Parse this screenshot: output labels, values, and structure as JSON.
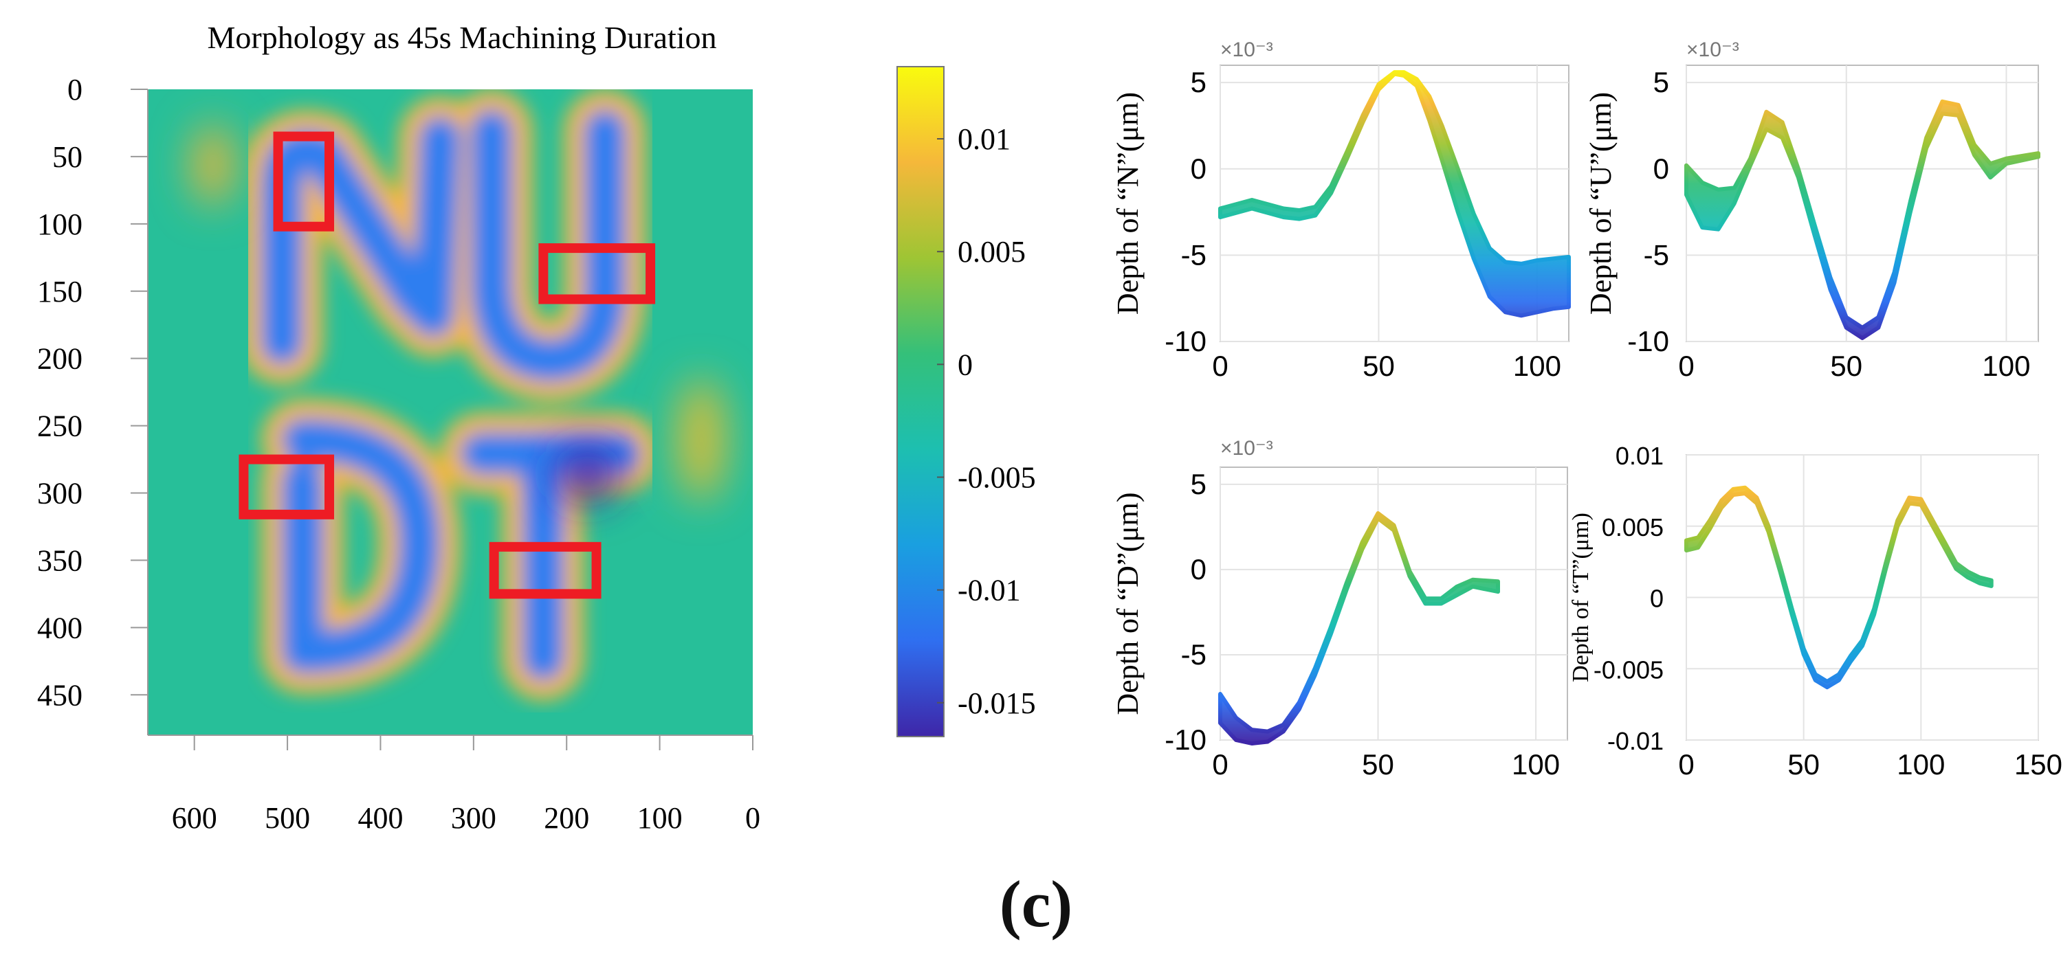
{
  "panel_label": "(c)",
  "chart_data": [
    {
      "type": "heatmap",
      "title": "Morphology as 45s Machining Duration",
      "x_ticks": [
        "600",
        "500",
        "400",
        "300",
        "200",
        "100",
        "0"
      ],
      "y_ticks": [
        "0",
        "50",
        "100",
        "150",
        "200",
        "250",
        "300",
        "350",
        "400",
        "450"
      ],
      "xlim": [
        650,
        0
      ],
      "ylim": [
        0,
        480
      ],
      "colorbar": {
        "ticks": [
          "0.01",
          "0.005",
          "0",
          "-0.005",
          "-0.01",
          "-0.015"
        ],
        "tick_values": [
          0.01,
          0.005,
          0,
          -0.005,
          -0.01,
          -0.015
        ],
        "range": [
          -0.0165,
          0.0132
        ],
        "colormap": [
          "#3e26a8",
          "#2f6ff0",
          "#1a9fe0",
          "#1dbfb0",
          "#34c07a",
          "#9ec534",
          "#f5b83a",
          "#f9fb0e"
        ]
      },
      "background_value": -0.002,
      "letters": [
        "N",
        "U",
        "D",
        "T"
      ],
      "highlight_boxes": [
        {
          "letter": "N",
          "x": [
            510,
            455
          ],
          "y": [
            35,
            102
          ]
        },
        {
          "letter": "U",
          "x": [
            225,
            110
          ],
          "y": [
            118,
            156
          ]
        },
        {
          "letter": "D",
          "x": [
            547,
            455
          ],
          "y": [
            275,
            316
          ]
        },
        {
          "letter": "T",
          "x": [
            278,
            168
          ],
          "y": [
            340,
            375
          ]
        }
      ],
      "highlight_color": "#ee1c24"
    },
    {
      "type": "line",
      "ylabel": "Depth of “N”(μm)",
      "multiplier": "×10⁻³",
      "x_ticks": [
        "0",
        "50",
        "100"
      ],
      "y_ticks": [
        "5",
        "0",
        "-5",
        "-10"
      ],
      "xlim": [
        0,
        110
      ],
      "ylim": [
        -10,
        6
      ],
      "series": [
        {
          "x": [
            0,
            10,
            20,
            25,
            30,
            35,
            40,
            45,
            50,
            55,
            58,
            62,
            66,
            70,
            75,
            80,
            85,
            90,
            95,
            100,
            105,
            110
          ],
          "y": [
            -2.8,
            -2.3,
            -2.8,
            -2.9,
            -2.7,
            -1.4,
            0.6,
            2.7,
            4.6,
            5.5,
            5.4,
            4.8,
            2.8,
            0.5,
            -2.5,
            -5.2,
            -7.4,
            -8.3,
            -8.5,
            -8.3,
            -8.1,
            -8.0
          ]
        },
        {
          "x": [
            0,
            10,
            20,
            25,
            30,
            35,
            40,
            45,
            50,
            55,
            58,
            62,
            66,
            70,
            75,
            80,
            85,
            90,
            95,
            100,
            105,
            110
          ],
          "y": [
            -2.3,
            -1.8,
            -2.3,
            -2.4,
            -2.2,
            -1.0,
            1.0,
            3.1,
            4.9,
            5.6,
            5.6,
            5.2,
            4.2,
            2.5,
            0.0,
            -2.6,
            -4.6,
            -5.4,
            -5.5,
            -5.3,
            -5.2,
            -5.1
          ]
        }
      ]
    },
    {
      "type": "line",
      "ylabel": "Depth of “U”(μm)",
      "multiplier": "×10⁻³",
      "x_ticks": [
        "0",
        "50",
        "100"
      ],
      "y_ticks": [
        "5",
        "0",
        "-5",
        "-10"
      ],
      "xlim": [
        0,
        110
      ],
      "ylim": [
        -10,
        6
      ],
      "series": [
        {
          "x": [
            0,
            5,
            10,
            15,
            20,
            25,
            30,
            35,
            40,
            45,
            50,
            55,
            60,
            65,
            70,
            75,
            80,
            85,
            90,
            95,
            100,
            110
          ],
          "y": [
            -1.5,
            -3.4,
            -3.5,
            -2.0,
            0.2,
            2.3,
            1.8,
            -0.5,
            -3.8,
            -7.0,
            -9.2,
            -9.8,
            -9.2,
            -6.6,
            -2.5,
            1.2,
            3.2,
            3.1,
            0.8,
            -0.5,
            0.3,
            0.7
          ]
        },
        {
          "x": [
            0,
            5,
            10,
            15,
            20,
            25,
            30,
            35,
            40,
            45,
            50,
            55,
            60,
            65,
            70,
            75,
            80,
            85,
            90,
            95,
            100,
            110
          ],
          "y": [
            0.2,
            -0.8,
            -1.2,
            -1.1,
            0.6,
            3.3,
            2.7,
            0.0,
            -3.2,
            -6.3,
            -8.6,
            -9.2,
            -8.6,
            -6.0,
            -1.9,
            1.8,
            3.9,
            3.7,
            1.4,
            0.3,
            0.6,
            0.9
          ]
        }
      ]
    },
    {
      "type": "line",
      "ylabel": "Depth of “D”(μm)",
      "multiplier": "×10⁻³",
      "x_ticks": [
        "0",
        "50",
        "100"
      ],
      "y_ticks": [
        "5",
        "0",
        "-5",
        "-10"
      ],
      "xlim": [
        0,
        110
      ],
      "ylim": [
        -10,
        6
      ],
      "series": [
        {
          "x": [
            0,
            5,
            10,
            15,
            20,
            25,
            30,
            35,
            40,
            45,
            50,
            55,
            60,
            65,
            70,
            75,
            80,
            88
          ],
          "y": [
            -9.0,
            -10.0,
            -10.2,
            -10.1,
            -9.5,
            -8.2,
            -6.2,
            -3.8,
            -1.2,
            1.2,
            3.0,
            2.3,
            -0.4,
            -2.0,
            -2.0,
            -1.5,
            -1.0,
            -1.3
          ]
        },
        {
          "x": [
            0,
            5,
            10,
            15,
            20,
            25,
            30,
            35,
            40,
            45,
            50,
            55,
            60,
            65,
            70,
            75,
            80,
            88
          ],
          "y": [
            -7.3,
            -8.7,
            -9.4,
            -9.5,
            -9.1,
            -7.8,
            -5.8,
            -3.4,
            -0.8,
            1.6,
            3.3,
            2.6,
            -0.1,
            -1.7,
            -1.7,
            -1.0,
            -0.6,
            -0.7
          ]
        }
      ]
    },
    {
      "type": "line",
      "ylabel": "Depth of “T”(μm)",
      "x_ticks": [
        "0",
        "50",
        "100",
        "150"
      ],
      "y_ticks": [
        "0.01",
        "0.005",
        "0",
        "-0.005",
        "-0.01"
      ],
      "xlim": [
        0,
        150
      ],
      "ylim": [
        -0.01,
        0.01
      ],
      "series": [
        {
          "x": [
            0,
            5,
            10,
            15,
            20,
            25,
            30,
            35,
            40,
            45,
            50,
            55,
            60,
            65,
            70,
            75,
            80,
            85,
            90,
            95,
            100,
            105,
            110,
            115,
            120,
            125,
            130
          ],
          "y": [
            0.0033,
            0.0035,
            0.0048,
            0.0063,
            0.0072,
            0.0073,
            0.0066,
            0.0046,
            0.0018,
            -0.0012,
            -0.004,
            -0.0058,
            -0.0063,
            -0.0058,
            -0.0045,
            -0.0034,
            -0.0012,
            0.002,
            0.005,
            0.0066,
            0.0065,
            0.005,
            0.0035,
            0.002,
            0.0014,
            0.001,
            0.0008
          ]
        },
        {
          "x": [
            0,
            5,
            10,
            15,
            20,
            25,
            30,
            35,
            40,
            45,
            50,
            55,
            60,
            65,
            70,
            75,
            80,
            85,
            90,
            95,
            100,
            105,
            110,
            115,
            120,
            125,
            130
          ],
          "y": [
            0.004,
            0.0042,
            0.0054,
            0.0068,
            0.0076,
            0.0077,
            0.007,
            0.005,
            0.0022,
            -0.0008,
            -0.0036,
            -0.0054,
            -0.0059,
            -0.0054,
            -0.0041,
            -0.003,
            -0.0008,
            0.0024,
            0.0054,
            0.007,
            0.0069,
            0.0054,
            0.0039,
            0.0024,
            0.0018,
            0.0014,
            0.0012
          ]
        }
      ]
    }
  ]
}
